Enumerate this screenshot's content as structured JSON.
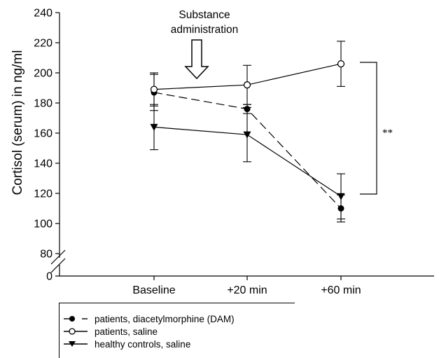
{
  "chart_data": {
    "type": "line",
    "categories": [
      "Baseline",
      "+20 min",
      "+60 min"
    ],
    "ylabel": "Cortisol (serum) in ng/ml",
    "ylim": [
      80,
      240
    ],
    "y_ticks": [
      "0",
      "80",
      "100",
      "120",
      "140",
      "160",
      "180",
      "200",
      "220",
      "240"
    ],
    "axis_break": true,
    "grid": false,
    "legend_position": "bottom",
    "series": [
      {
        "name": "patients, diacetylmorphine (DAM)",
        "marker": "filled-circle",
        "line_style": "dashed",
        "values": [
          187,
          176,
          110
        ],
        "error": [
          12,
          3,
          9
        ]
      },
      {
        "name": "patients, saline",
        "marker": "open-circle",
        "line_style": "solid",
        "values": [
          189,
          192,
          206
        ],
        "error": [
          11,
          13,
          15
        ]
      },
      {
        "name": "healthy controls, saline",
        "marker": "filled-triangle-down",
        "line_style": "solid",
        "values": [
          164,
          159,
          118
        ],
        "error": [
          15,
          18,
          15
        ]
      }
    ],
    "annotations": {
      "arrow_label_line1": "Substance",
      "arrow_label_line2": "administration",
      "significance": "**"
    }
  }
}
